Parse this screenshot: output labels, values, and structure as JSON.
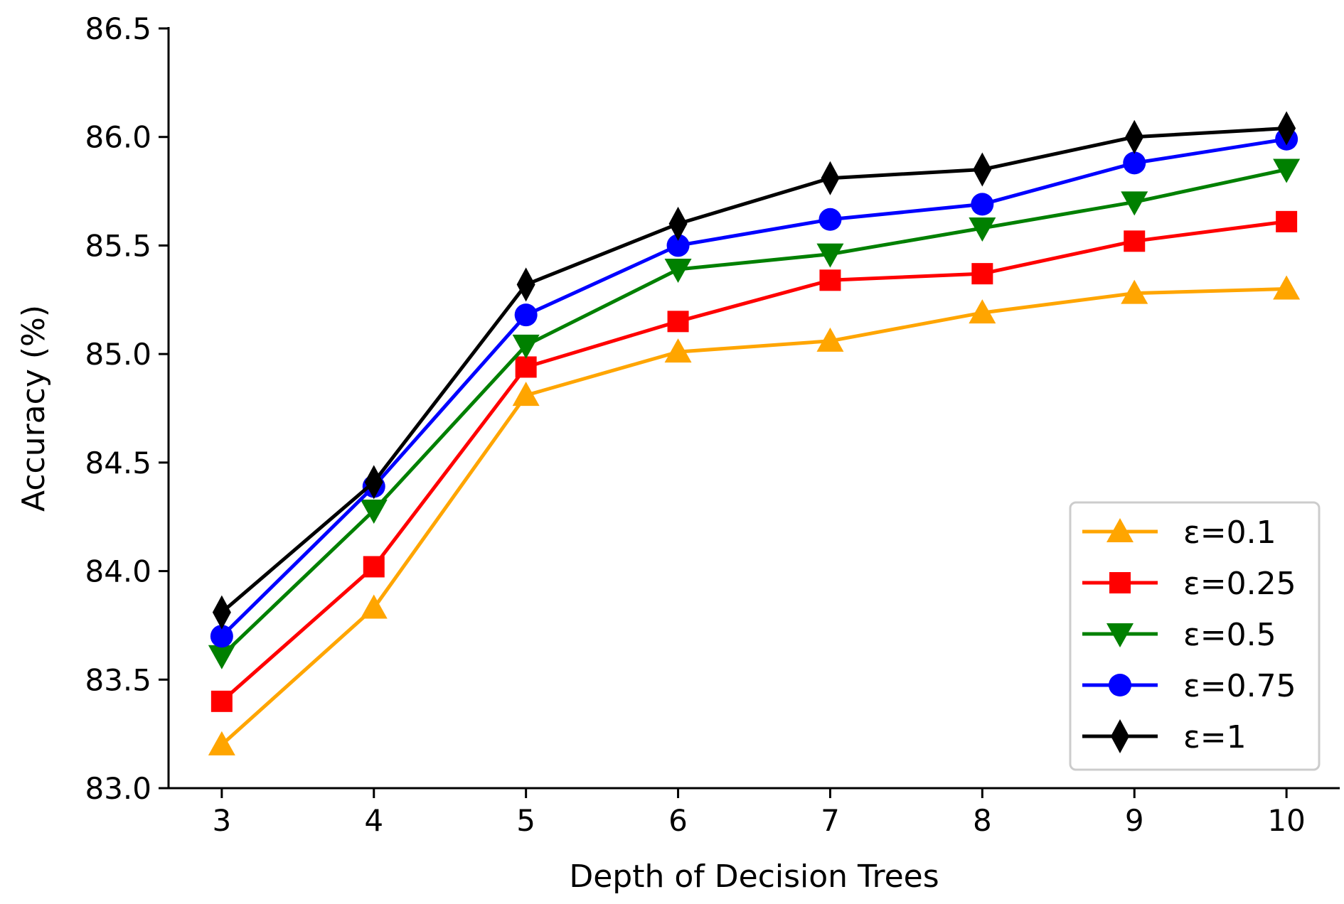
{
  "chart_data": {
    "type": "line",
    "title": "",
    "xlabel": "Depth of Decision Trees",
    "ylabel": "Accuracy (%)",
    "x": [
      3,
      4,
      5,
      6,
      7,
      8,
      9,
      10
    ],
    "xticks": [
      "3",
      "4",
      "5",
      "6",
      "7",
      "8",
      "9",
      "10"
    ],
    "xlim": [
      2.65,
      10.35
    ],
    "ylim": [
      83.0,
      86.5
    ],
    "yticks": [
      "83.0",
      "83.5",
      "84.0",
      "84.5",
      "85.0",
      "85.5",
      "86.0",
      "86.5"
    ],
    "grid": false,
    "legend_position": "lower-right",
    "series": [
      {
        "name": "ε=0.1",
        "color": "#FFA500",
        "marker": "triangle-up",
        "values": [
          83.2,
          83.83,
          84.81,
          85.01,
          85.06,
          85.19,
          85.28,
          85.3
        ]
      },
      {
        "name": "ε=0.25",
        "color": "#FF0000",
        "marker": "square",
        "values": [
          83.4,
          84.02,
          84.94,
          85.15,
          85.34,
          85.37,
          85.52,
          85.61
        ]
      },
      {
        "name": "ε=0.5",
        "color": "#008000",
        "marker": "triangle-down",
        "values": [
          83.61,
          84.28,
          85.04,
          85.39,
          85.46,
          85.58,
          85.7,
          85.85
        ]
      },
      {
        "name": "ε=0.75",
        "color": "#0000FF",
        "marker": "circle",
        "values": [
          83.7,
          84.39,
          85.18,
          85.5,
          85.62,
          85.69,
          85.88,
          85.99
        ]
      },
      {
        "name": "ε=1",
        "color": "#000000",
        "marker": "diamond",
        "values": [
          83.81,
          84.41,
          85.32,
          85.6,
          85.81,
          85.85,
          86.0,
          86.04
        ]
      }
    ]
  }
}
